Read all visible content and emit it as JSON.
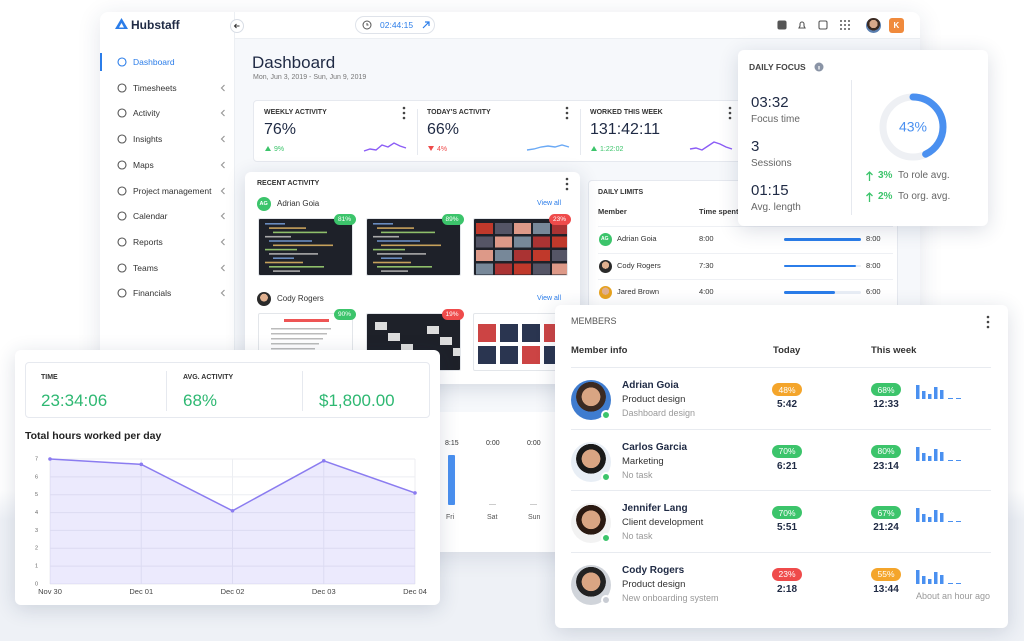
{
  "app": {
    "logo": "Hubstaff",
    "timer": "02:44:15",
    "user_initial": "K"
  },
  "sidebar": [
    "Dashboard",
    "Timesheets",
    "Activity",
    "Insights",
    "Maps",
    "Project management",
    "Calendar",
    "Reports",
    "Teams",
    "Financials"
  ],
  "header": {
    "title": "Dashboard",
    "date_range": "Mon, Jun 3, 2019 - Sun, Jun 9, 2019"
  },
  "stats": [
    {
      "label": "WEEKLY ACTIVITY",
      "value": "76%",
      "change": "9%",
      "trend": "up"
    },
    {
      "label": "TODAY'S ACTIVITY",
      "value": "66%",
      "change": "4%",
      "trend": "down"
    },
    {
      "label": "WORKED THIS WEEK",
      "value": "131:42:11",
      "change": "1:22:02",
      "trend": "up"
    }
  ],
  "recent_activity": {
    "title": "RECENT ACTIVITY",
    "members": [
      {
        "initials": "AG",
        "name": "Adrian Goia",
        "link": "View all",
        "screenshots": [
          "81%",
          "89%",
          "23%"
        ]
      },
      {
        "name": "Cody Rogers",
        "link": "View all",
        "screenshots": [
          "90%",
          "19%"
        ]
      }
    ]
  },
  "daily_limits": {
    "title": "DAILY LIMITS",
    "columns": [
      "Member",
      "Time spent"
    ],
    "rows": [
      {
        "initials": "AG",
        "name": "Adrian Goia",
        "spent": "8:00",
        "limit": "8:00"
      },
      {
        "name": "Cody Rogers",
        "spent": "7:30",
        "limit": "8:00"
      },
      {
        "name": "Jared Brown",
        "spent": "4:00",
        "limit": "6:00"
      }
    ]
  },
  "daily_focus": {
    "title": "DAILY FOCUS",
    "metrics": [
      {
        "value": "03:32",
        "label": "Focus time"
      },
      {
        "value": "3",
        "label": "Sessions"
      },
      {
        "value": "01:15",
        "label": "Avg. length"
      }
    ],
    "score": {
      "value": 43,
      "label": "43%"
    },
    "comparisons": [
      {
        "change": "3%",
        "label": "To role avg."
      },
      {
        "change": "2%",
        "label": "To org. avg."
      }
    ]
  },
  "members": {
    "title": "MEMBERS",
    "columns": [
      "Member info",
      "Today",
      "This week"
    ],
    "rows": [
      {
        "name": "Adrian Goia",
        "role": "Product design",
        "task": "Dashboard design",
        "today_activity": "48%",
        "today_time": "5:42",
        "week_activity": "68%",
        "week_time": "12:33",
        "online": true
      },
      {
        "name": "Carlos Garcia",
        "role": "Marketing",
        "task": "No task",
        "today_activity": "70%",
        "today_time": "6:21",
        "week_activity": "80%",
        "week_time": "23:14",
        "online": true
      },
      {
        "name": "Jennifer Lang",
        "role": "Client development",
        "task": "No task",
        "today_activity": "70%",
        "today_time": "5:51",
        "week_activity": "67%",
        "week_time": "21:24",
        "online": true
      },
      {
        "name": "Cody Rogers",
        "role": "Product design",
        "task": "New onboarding system",
        "today_activity": "23%",
        "today_time": "2:18",
        "week_activity": "55%",
        "week_time": "13:44",
        "online": false,
        "last_seen": "About an hour ago"
      }
    ]
  },
  "summary": {
    "stats": [
      {
        "label": "TIME",
        "value": "23:34:06"
      },
      {
        "label": "AVG. ACTIVITY",
        "value": "68%"
      },
      {
        "value": "$1,800.00"
      }
    ]
  },
  "weekly": {
    "days": [
      {
        "value": "8:15",
        "day": "Fri"
      },
      {
        "value": "0:00",
        "day": "Sat"
      },
      {
        "value": "0:00",
        "day": "Sun"
      }
    ]
  },
  "chart_data": {
    "type": "line",
    "title": "Total hours worked per day",
    "categories": [
      "Nov 30",
      "Dec 01",
      "Dec 02",
      "Dec 03",
      "Dec 04"
    ],
    "values": [
      7,
      6.7,
      4.1,
      6.9,
      5.1
    ],
    "ylim": [
      0,
      7
    ],
    "yticks": [
      0,
      1,
      2,
      3,
      4,
      5,
      6,
      7
    ],
    "color": "#8b7cf0",
    "grid": true
  }
}
